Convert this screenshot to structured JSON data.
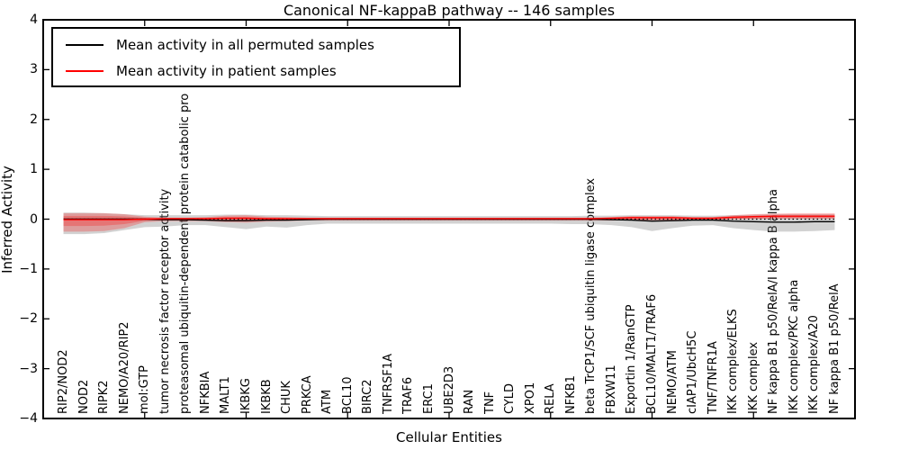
{
  "chart_data": {
    "type": "line",
    "title": "Canonical NF-kappaB pathway -- 146 samples",
    "xlabel": "Cellular Entities",
    "ylabel": "Inferred Activity",
    "ylim": [
      -4,
      4
    ],
    "yticks": [
      4,
      3,
      2,
      1,
      0,
      -1,
      -2,
      -3,
      -4
    ],
    "grid": false,
    "legend_position": "upper left",
    "x_major_tick_indices": [
      4,
      9,
      14,
      19,
      24,
      29,
      34
    ],
    "categories": [
      "RIP2/NOD2",
      "NOD2",
      "RIPK2",
      "NEMO/A20/RIP2",
      "mol:GTP",
      "tumor necrosis factor receptor activity",
      "proteasomal ubiquitin-dependent protein catabolic pro",
      "NFKBIA",
      "MALT1",
      "IKBKG",
      "IKBKB",
      "CHUK",
      "PRKCA",
      "ATM",
      "BCL10",
      "BIRC2",
      "TNFRSF1A",
      "TRAF6",
      "ERC1",
      "UBE2D3",
      "RAN",
      "TNF",
      "CYLD",
      "XPO1",
      "RELA",
      "NFKB1",
      "beta TrCP1/SCF ubiquitin ligase complex",
      "FBXW11",
      "Exportin 1/RanGTP",
      "BCL10/MALT1/TRAF6",
      "NEMO/ATM",
      "cIAP1/UbcH5C",
      "TNF/TNFR1A",
      "IKK complex/ELKS",
      "IKK complex",
      "NF kappa B1 p50/RelA/I kappa B alpha",
      "IKK complex/PKC alpha",
      "IKK complex/A20",
      "NF kappa B1 p50/RelA"
    ],
    "series": [
      {
        "name": "Mean activity in all permuted samples",
        "color": "#000000",
        "style": "solid",
        "values": [
          0,
          0,
          0,
          0,
          0,
          -0.01,
          -0.01,
          -0.02,
          -0.03,
          -0.03,
          -0.02,
          -0.02,
          -0.01,
          0,
          0,
          0,
          0,
          0,
          0,
          0,
          0,
          0,
          0,
          0,
          0,
          0,
          0,
          -0.01,
          -0.02,
          -0.04,
          -0.03,
          -0.02,
          -0.02,
          -0.04,
          -0.05,
          -0.06,
          -0.06,
          -0.05,
          -0.05
        ]
      },
      {
        "name": "Mean activity in patient samples",
        "color": "#ff0000",
        "style": "solid",
        "values": [
          -0.01,
          -0.01,
          -0.01,
          -0.01,
          0,
          0.01,
          0.01,
          0.01,
          0.02,
          0.02,
          0.01,
          0.01,
          0.01,
          0.01,
          0.01,
          0.01,
          0.01,
          0.01,
          0.01,
          0.01,
          0.01,
          0.01,
          0.01,
          0.01,
          0.01,
          0.01,
          0.01,
          0.02,
          0.03,
          0.03,
          0.03,
          0.02,
          0.02,
          0.04,
          0.05,
          0.06,
          0.06,
          0.06,
          0.06
        ]
      }
    ],
    "bands": [
      {
        "name": "permuted-samples-band",
        "color": "#7f7f7f",
        "opacity": 0.35,
        "upper": [
          0.13,
          0.13,
          0.12,
          0.1,
          0.08,
          0.08,
          0.08,
          0.08,
          0.09,
          0.09,
          0.08,
          0.08,
          0.07,
          0.06,
          0.06,
          0.06,
          0.06,
          0.06,
          0.06,
          0.06,
          0.06,
          0.06,
          0.06,
          0.06,
          0.06,
          0.06,
          0.07,
          0.07,
          0.08,
          0.08,
          0.08,
          0.07,
          0.07,
          0.08,
          0.09,
          0.1,
          0.1,
          0.1,
          0.1
        ],
        "lower": [
          -0.3,
          -0.3,
          -0.28,
          -0.22,
          -0.16,
          -0.15,
          -0.12,
          -0.12,
          -0.16,
          -0.2,
          -0.15,
          -0.17,
          -0.12,
          -0.09,
          -0.09,
          -0.09,
          -0.09,
          -0.09,
          -0.09,
          -0.09,
          -0.09,
          -0.09,
          -0.09,
          -0.09,
          -0.09,
          -0.1,
          -0.1,
          -0.12,
          -0.16,
          -0.24,
          -0.18,
          -0.13,
          -0.12,
          -0.18,
          -0.22,
          -0.25,
          -0.25,
          -0.24,
          -0.22
        ]
      },
      {
        "name": "patient-samples-band",
        "color": "#ff0000",
        "opacity": 0.25,
        "upper": [
          0.12,
          0.12,
          0.12,
          0.1,
          0.05,
          0.03,
          0.03,
          0.04,
          0.07,
          0.08,
          0.05,
          0.04,
          0.03,
          0.03,
          0.03,
          0.03,
          0.03,
          0.03,
          0.03,
          0.03,
          0.03,
          0.03,
          0.03,
          0.03,
          0.03,
          0.03,
          0.03,
          0.04,
          0.06,
          0.06,
          0.06,
          0.04,
          0.04,
          0.08,
          0.1,
          0.11,
          0.12,
          0.12,
          0.12
        ],
        "lower": [
          -0.25,
          -0.25,
          -0.24,
          -0.18,
          -0.06,
          -0.04,
          -0.04,
          -0.04,
          -0.06,
          -0.07,
          -0.05,
          -0.04,
          -0.03,
          -0.03,
          -0.03,
          -0.03,
          -0.03,
          -0.03,
          -0.03,
          -0.03,
          -0.03,
          -0.03,
          -0.03,
          -0.03,
          -0.03,
          -0.03,
          -0.03,
          -0.03,
          -0.02,
          -0.02,
          -0.02,
          -0.02,
          -0.02,
          0.0,
          0.01,
          0.02,
          0.02,
          0.02,
          0.02
        ]
      }
    ],
    "zero_line": {
      "style": "dotted",
      "color": "#000000",
      "y": 0
    }
  }
}
